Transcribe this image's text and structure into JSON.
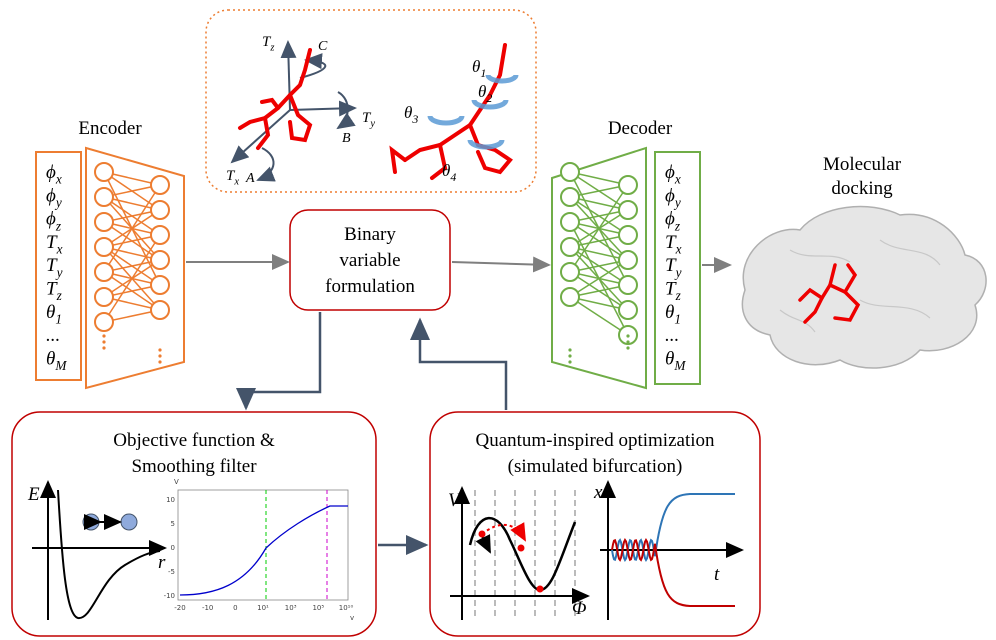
{
  "encoder": {
    "title": "Encoder",
    "variables": [
      {
        "symbol": "ϕ",
        "sub": "x"
      },
      {
        "symbol": "ϕ",
        "sub": "y"
      },
      {
        "symbol": "ϕ",
        "sub": "z"
      },
      {
        "symbol": "T",
        "sub": "x"
      },
      {
        "symbol": "T",
        "sub": "y"
      },
      {
        "symbol": "T",
        "sub": "z"
      },
      {
        "symbol": "θ",
        "sub": "1"
      },
      {
        "symbol": "..."
      },
      {
        "symbol": "θ",
        "sub": "M"
      }
    ]
  },
  "decoder": {
    "title": "Decoder",
    "variables": [
      {
        "symbol": "ϕ",
        "sub": "x"
      },
      {
        "symbol": "ϕ",
        "sub": "y"
      },
      {
        "symbol": "ϕ",
        "sub": "z"
      },
      {
        "symbol": "T",
        "sub": "x"
      },
      {
        "symbol": "T",
        "sub": "y"
      },
      {
        "symbol": "T",
        "sub": "z"
      },
      {
        "symbol": "θ",
        "sub": "1"
      },
      {
        "symbol": "..."
      },
      {
        "symbol": "θ",
        "sub": "M"
      }
    ]
  },
  "center": {
    "lines": [
      "Binary",
      "variable",
      "formulation"
    ]
  },
  "docking": {
    "lines": [
      "Molecular",
      "docking"
    ]
  },
  "molecule": {
    "axes": [
      {
        "symbol": "T",
        "sub": "z"
      },
      {
        "symbol": "T",
        "sub": "y"
      },
      {
        "symbol": "T",
        "sub": "x"
      }
    ],
    "rotations": [
      "C",
      "B",
      "A"
    ],
    "torsions": [
      {
        "symbol": "θ",
        "sub": "1"
      },
      {
        "symbol": "θ",
        "sub": "2"
      },
      {
        "symbol": "θ",
        "sub": "3"
      },
      {
        "symbol": "θ",
        "sub": "4"
      }
    ]
  },
  "objective": {
    "title_lines": [
      "Objective function &",
      "Smoothing filter"
    ],
    "sketch": {
      "y_label": "E",
      "x_label": "r"
    },
    "plot": {
      "y_label": "V",
      "x_label": "v",
      "yticks": [
        "10",
        "5",
        "0",
        "-5",
        "-10"
      ],
      "xticks": [
        "-20",
        "-10",
        "0",
        "10¹",
        "10³",
        "10⁵",
        "10¹⁰"
      ]
    }
  },
  "optimization": {
    "title_lines": [
      "Quantum-inspired optimization",
      "(simulated bifurcation)"
    ],
    "potential": {
      "y_label": "V",
      "x_label": "Φ"
    },
    "trajectory": {
      "y_label": "x",
      "x_label": "t"
    }
  }
}
